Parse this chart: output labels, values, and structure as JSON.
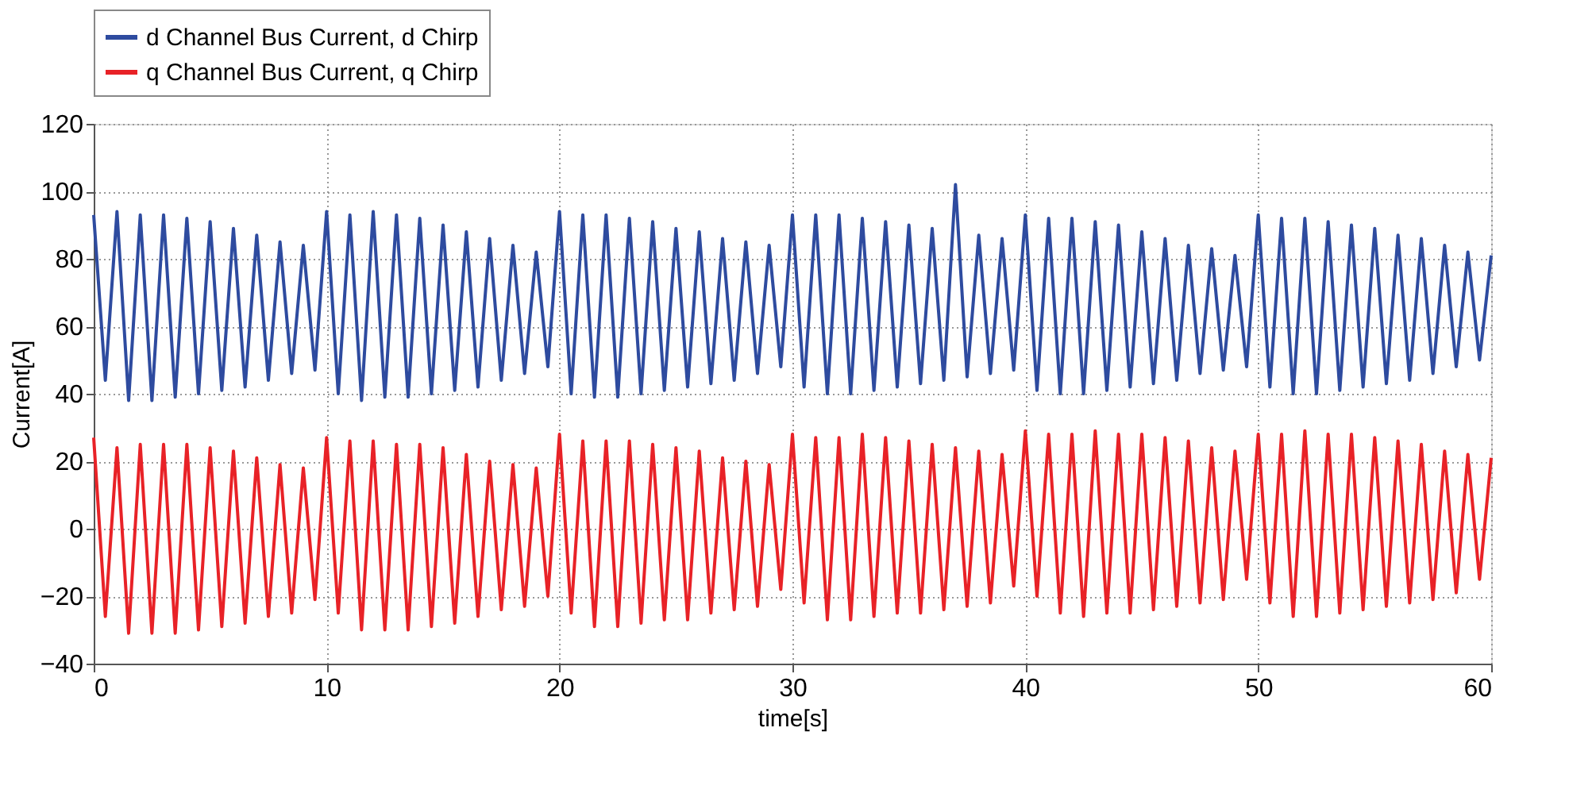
{
  "chart_data": {
    "type": "line",
    "xlabel": "time[s]",
    "ylabel": "Current[A]",
    "x": [
      0,
      0.5,
      1,
      1.5,
      2,
      2.5,
      3,
      3.5,
      4,
      4.5,
      5,
      5.5,
      6,
      6.5,
      7,
      7.5,
      8,
      8.5,
      9,
      9.5,
      10,
      10.5,
      11,
      11.5,
      12,
      12.5,
      13,
      13.5,
      14,
      14.5,
      15,
      15.5,
      16,
      16.5,
      17,
      17.5,
      18,
      18.5,
      19,
      19.5,
      20,
      20.5,
      21,
      21.5,
      22,
      22.5,
      23,
      23.5,
      24,
      24.5,
      25,
      25.5,
      26,
      26.5,
      27,
      27.5,
      28,
      28.5,
      29,
      29.5,
      30,
      30.5,
      31,
      31.5,
      32,
      32.5,
      33,
      33.5,
      34,
      34.5,
      35,
      35.5,
      36,
      36.5,
      37,
      37.5,
      38,
      38.5,
      39,
      39.5,
      40,
      40.5,
      41,
      41.5,
      42,
      42.5,
      43,
      43.5,
      44,
      44.5,
      45,
      45.5,
      46,
      46.5,
      47,
      47.5,
      48,
      48.5,
      49,
      49.5,
      50,
      50.5,
      51,
      51.5,
      52,
      52.5,
      53,
      53.5,
      54,
      54.5,
      55,
      55.5,
      56,
      56.5,
      57,
      57.5,
      58,
      58.5,
      59,
      59.5,
      60
    ],
    "series": [
      {
        "name": "d Channel Bus Current, d Chirp",
        "color": "#2e4b9f",
        "values": [
          93,
          44,
          94,
          38,
          93,
          38,
          93,
          39,
          92,
          40,
          91,
          41,
          89,
          42,
          87,
          44,
          85,
          46,
          84,
          47,
          94,
          40,
          93,
          38,
          94,
          39,
          93,
          39,
          92,
          40,
          90,
          41,
          88,
          42,
          86,
          44,
          84,
          46,
          82,
          48,
          94,
          40,
          93,
          39,
          93,
          39,
          92,
          40,
          91,
          41,
          89,
          42,
          88,
          43,
          86,
          44,
          85,
          46,
          84,
          48,
          93,
          42,
          93,
          40,
          93,
          40,
          92,
          41,
          91,
          42,
          90,
          43,
          89,
          44,
          102,
          45,
          87,
          46,
          86,
          47,
          93,
          41,
          92,
          40,
          92,
          40,
          91,
          41,
          90,
          42,
          88,
          43,
          86,
          44,
          84,
          46,
          83,
          47,
          81,
          48,
          93,
          42,
          92,
          40,
          92,
          40,
          91,
          41,
          90,
          42,
          89,
          43,
          87,
          44,
          86,
          46,
          84,
          48,
          82,
          50,
          81
        ]
      },
      {
        "name": "q Channel Bus Current, q Chirp",
        "color": "#e82227",
        "values": [
          27,
          -26,
          24,
          -31,
          25,
          -31,
          25,
          -31,
          25,
          -30,
          24,
          -29,
          23,
          -28,
          21,
          -26,
          19,
          -25,
          18,
          -21,
          27,
          -25,
          26,
          -30,
          26,
          -30,
          25,
          -30,
          25,
          -29,
          24,
          -28,
          22,
          -26,
          20,
          -24,
          19,
          -23,
          18,
          -20,
          28,
          -25,
          26,
          -29,
          26,
          -29,
          26,
          -28,
          25,
          -27,
          24,
          -27,
          23,
          -25,
          21,
          -24,
          20,
          -23,
          19,
          -18,
          28,
          -22,
          27,
          -27,
          27,
          -27,
          28,
          -26,
          27,
          -25,
          26,
          -25,
          25,
          -24,
          24,
          -23,
          23,
          -22,
          22,
          -17,
          29,
          -20,
          28,
          -25,
          28,
          -26,
          29,
          -25,
          28,
          -25,
          28,
          -24,
          27,
          -23,
          26,
          -22,
          24,
          -21,
          23,
          -15,
          28,
          -22,
          28,
          -26,
          29,
          -26,
          28,
          -25,
          28,
          -24,
          27,
          -23,
          26,
          -22,
          25,
          -21,
          23,
          -19,
          22,
          -15,
          21
        ]
      }
    ],
    "xlim": [
      0,
      60
    ],
    "xticks": [
      0,
      10,
      20,
      30,
      40,
      50,
      60
    ],
    "ylim": [
      -40,
      120
    ],
    "yticks": [
      -40,
      -20,
      0,
      20,
      40,
      60,
      80,
      100,
      120
    ],
    "grid": true,
    "legend": "top",
    "line_style": "solid",
    "marker": "none"
  }
}
